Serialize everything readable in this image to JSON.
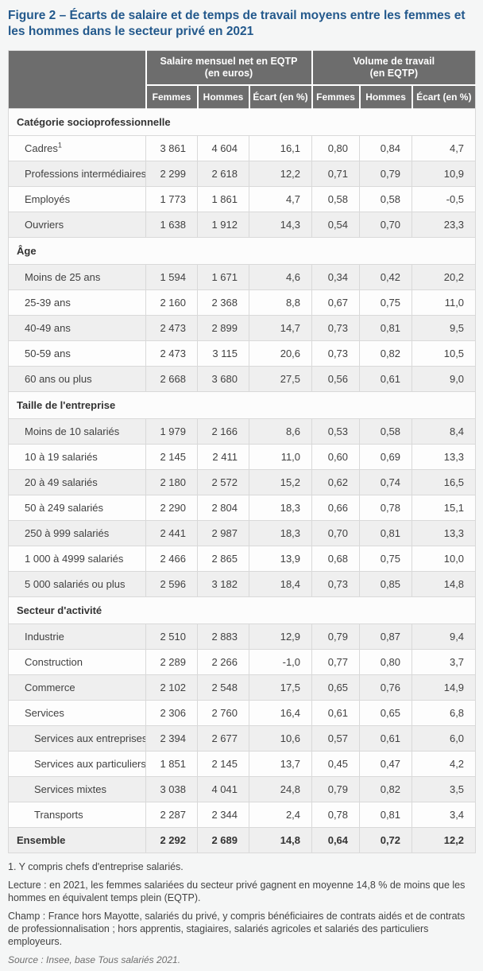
{
  "title": "Figure 2 – Écarts de salaire et de temps de travail moyens entre les femmes et les hommes dans le secteur privé en 2021",
  "colors": {
    "title_blue": "#23598c",
    "header_gray": "#6d6d6d",
    "row_alt_gray": "#efefef",
    "row_white": "#fdfdfd",
    "border_light": "#d9d9d9",
    "page_bg": "#f5f6f6",
    "text_dark": "#414141"
  },
  "chart_data": {
    "type": "table",
    "column_groups": [
      {
        "label": "Salaire mensuel net en EQTP",
        "sublabel": "(en euros)",
        "columns": [
          "Femmes",
          "Hommes",
          "Écart (en %)"
        ]
      },
      {
        "label": "Volume de travail",
        "sublabel": "(en EQTP)",
        "columns": [
          "Femmes",
          "Hommes",
          "Écart (en %)"
        ]
      }
    ],
    "sections": [
      {
        "label": "Catégorie socioprofessionnelle",
        "rows": [
          {
            "label": "Cadres",
            "sup": "1",
            "values": [
              "3 861",
              "4 604",
              "16,1",
              "0,80",
              "0,84",
              "4,7"
            ]
          },
          {
            "label": "Professions intermédiaires",
            "values": [
              "2 299",
              "2 618",
              "12,2",
              "0,71",
              "0,79",
              "10,9"
            ]
          },
          {
            "label": "Employés",
            "values": [
              "1 773",
              "1 861",
              "4,7",
              "0,58",
              "0,58",
              "-0,5"
            ]
          },
          {
            "label": "Ouvriers",
            "values": [
              "1 638",
              "1 912",
              "14,3",
              "0,54",
              "0,70",
              "23,3"
            ]
          }
        ]
      },
      {
        "label": "Âge",
        "rows": [
          {
            "label": "Moins de 25 ans",
            "values": [
              "1 594",
              "1 671",
              "4,6",
              "0,34",
              "0,42",
              "20,2"
            ]
          },
          {
            "label": "25-39 ans",
            "values": [
              "2 160",
              "2 368",
              "8,8",
              "0,67",
              "0,75",
              "11,0"
            ]
          },
          {
            "label": "40-49 ans",
            "values": [
              "2 473",
              "2 899",
              "14,7",
              "0,73",
              "0,81",
              "9,5"
            ]
          },
          {
            "label": "50-59 ans",
            "values": [
              "2 473",
              "3 115",
              "20,6",
              "0,73",
              "0,82",
              "10,5"
            ]
          },
          {
            "label": "60 ans ou plus",
            "values": [
              "2 668",
              "3 680",
              "27,5",
              "0,56",
              "0,61",
              "9,0"
            ]
          }
        ]
      },
      {
        "label": "Taille de l'entreprise",
        "rows": [
          {
            "label": "Moins de 10 salariés",
            "values": [
              "1 979",
              "2 166",
              "8,6",
              "0,53",
              "0,58",
              "8,4"
            ]
          },
          {
            "label": "10 à 19 salariés",
            "values": [
              "2 145",
              "2 411",
              "11,0",
              "0,60",
              "0,69",
              "13,3"
            ]
          },
          {
            "label": "20 à 49 salariés",
            "values": [
              "2 180",
              "2 572",
              "15,2",
              "0,62",
              "0,74",
              "16,5"
            ]
          },
          {
            "label": "50 à 249 salariés",
            "values": [
              "2 290",
              "2 804",
              "18,3",
              "0,66",
              "0,78",
              "15,1"
            ]
          },
          {
            "label": "250 à 999 salariés",
            "values": [
              "2 441",
              "2 987",
              "18,3",
              "0,70",
              "0,81",
              "13,3"
            ]
          },
          {
            "label": "1 000 à 4999 salariés",
            "values": [
              "2 466",
              "2 865",
              "13,9",
              "0,68",
              "0,75",
              "10,0"
            ]
          },
          {
            "label": "5 000 salariés ou plus",
            "values": [
              "2 596",
              "3 182",
              "18,4",
              "0,73",
              "0,85",
              "14,8"
            ]
          }
        ]
      },
      {
        "label": "Secteur d'activité",
        "rows": [
          {
            "label": "Industrie",
            "values": [
              "2 510",
              "2 883",
              "12,9",
              "0,79",
              "0,87",
              "9,4"
            ]
          },
          {
            "label": "Construction",
            "values": [
              "2 289",
              "2 266",
              "-1,0",
              "0,77",
              "0,80",
              "3,7"
            ]
          },
          {
            "label": "Commerce",
            "values": [
              "2 102",
              "2 548",
              "17,5",
              "0,65",
              "0,76",
              "14,9"
            ]
          },
          {
            "label": "Services",
            "values": [
              "2 306",
              "2 760",
              "16,4",
              "0,61",
              "0,65",
              "6,8"
            ]
          },
          {
            "label": "Services aux entreprises",
            "indent": true,
            "values": [
              "2 394",
              "2 677",
              "10,6",
              "0,57",
              "0,61",
              "6,0"
            ]
          },
          {
            "label": "Services aux particuliers",
            "indent": true,
            "values": [
              "1 851",
              "2 145",
              "13,7",
              "0,45",
              "0,47",
              "4,2"
            ]
          },
          {
            "label": "Services mixtes",
            "indent": true,
            "values": [
              "3 038",
              "4 041",
              "24,8",
              "0,79",
              "0,82",
              "3,5"
            ]
          },
          {
            "label": "Transports",
            "indent": true,
            "values": [
              "2 287",
              "2 344",
              "2,4",
              "0,78",
              "0,81",
              "3,4"
            ]
          }
        ]
      }
    ],
    "total_row": {
      "label": "Ensemble",
      "values": [
        "2 292",
        "2 689",
        "14,8",
        "0,64",
        "0,72",
        "12,2"
      ]
    }
  },
  "notes": {
    "footnote": "1. Y compris chefs d'entreprise salariés.",
    "lecture": "Lecture : en 2021, les femmes salariées du secteur privé gagnent en moyenne 14,8 % de moins que les hommes en équivalent temps plein (EQTP).",
    "champ": "Champ : France hors Mayotte, salariés du privé, y compris bénéficiaires de contrats aidés et de contrats de professionnalisation ; hors apprentis, stagiaires, salariés agricoles et salariés des particuliers employeurs.",
    "source": "Source : Insee, base Tous salariés 2021."
  }
}
